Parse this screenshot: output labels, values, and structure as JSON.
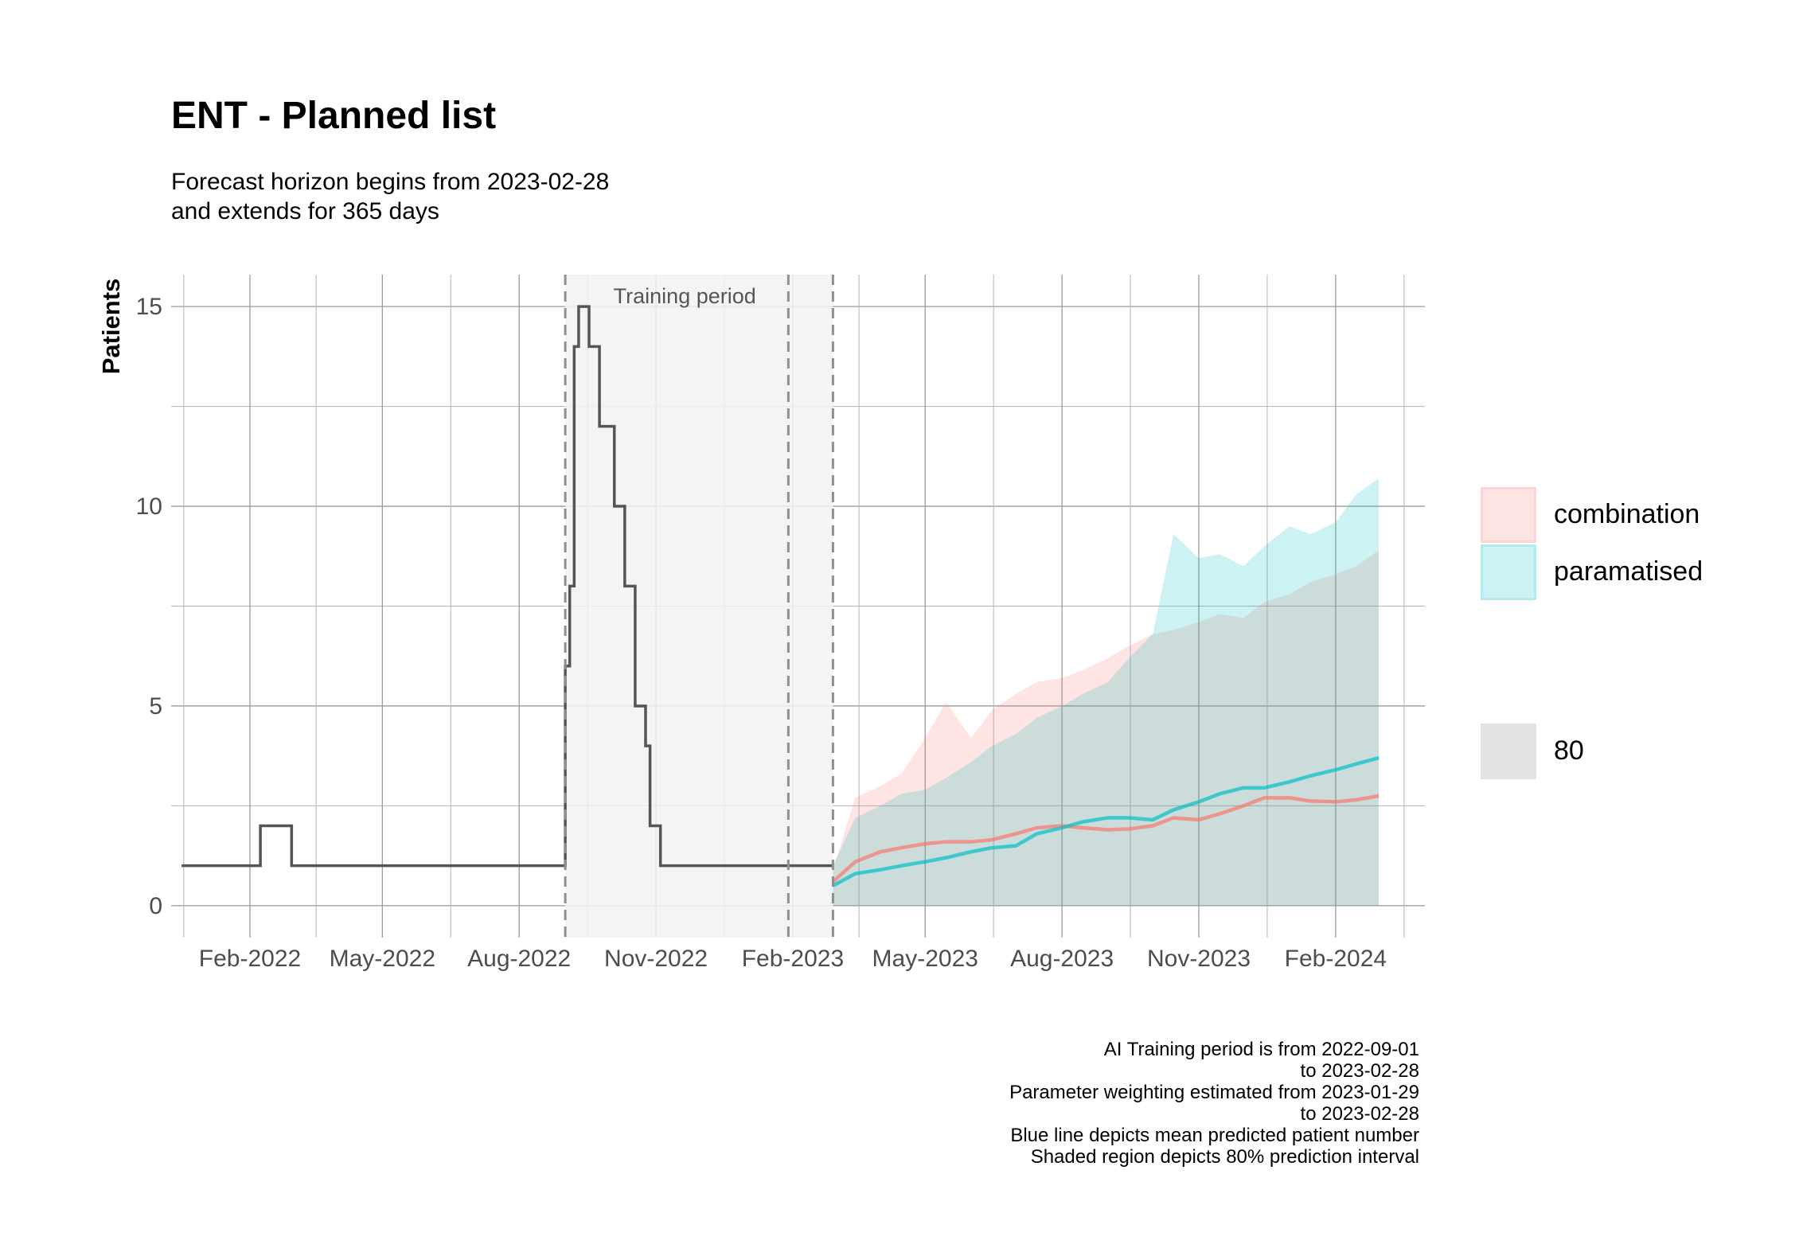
{
  "title": "ENT - Planned list",
  "subtitle_lines": [
    "Forecast horizon begins from 2023-02-28",
    "and extends for 365 days"
  ],
  "caption_lines": [
    "AI Training period is from 2022-09-01",
    "to 2023-02-28",
    "Parameter weighting estimated from 2023-01-29",
    "to 2023-02-28",
    "Blue line depicts mean predicted patient number",
    "Shaded region depicts 80% prediction interval"
  ],
  "legend": {
    "items": [
      {
        "label": "combination",
        "color": "#F8766D"
      },
      {
        "label": "paramatised",
        "color": "#00BFC4"
      }
    ],
    "interval_label": "80"
  },
  "colors": {
    "observed": "#555555",
    "combination": "#F8766D",
    "paramatised": "#00BFC4",
    "training_shade": "#F2F2F2"
  },
  "chart_data": {
    "type": "line",
    "ylabel": "Patients",
    "xlabel": "",
    "xlim": [
      "2021-12-10",
      "2024-04-01"
    ],
    "ylim": [
      -0.8,
      15.8
    ],
    "y_ticks": [
      0,
      5,
      10,
      15
    ],
    "x_ticks": [
      {
        "date": "2022-02-01",
        "label": "Feb-2022"
      },
      {
        "date": "2022-05-01",
        "label": "May-2022"
      },
      {
        "date": "2022-08-01",
        "label": "Aug-2022"
      },
      {
        "date": "2022-11-01",
        "label": "Nov-2022"
      },
      {
        "date": "2023-02-01",
        "label": "Feb-2023"
      },
      {
        "date": "2023-05-01",
        "label": "May-2023"
      },
      {
        "date": "2023-08-01",
        "label": "Aug-2023"
      },
      {
        "date": "2023-11-01",
        "label": "Nov-2023"
      },
      {
        "date": "2024-02-01",
        "label": "Feb-2024"
      }
    ],
    "grid": true,
    "legend_position": "right",
    "annotations": {
      "training_period_label": "Training period",
      "training_period": [
        "2022-09-01",
        "2023-02-28"
      ],
      "parameter_window_start": "2023-01-29"
    },
    "observed": {
      "x": [
        "2021-12-17",
        "2022-02-08",
        "2022-02-08",
        "2022-03-01",
        "2022-03-01",
        "2022-09-01",
        "2022-09-01",
        "2022-09-04",
        "2022-09-04",
        "2022-09-07",
        "2022-09-07",
        "2022-09-10",
        "2022-09-10",
        "2022-09-17",
        "2022-09-17",
        "2022-09-24",
        "2022-09-24",
        "2022-10-04",
        "2022-10-04",
        "2022-10-11",
        "2022-10-11",
        "2022-10-18",
        "2022-10-18",
        "2022-10-25",
        "2022-10-25",
        "2022-10-28",
        "2022-10-28",
        "2022-11-04",
        "2022-11-04",
        "2023-02-28"
      ],
      "y": [
        1,
        1,
        2,
        2,
        1,
        1,
        6,
        6,
        8,
        8,
        14,
        14,
        15,
        15,
        14,
        14,
        12,
        12,
        10,
        10,
        8,
        8,
        5,
        5,
        4,
        4,
        2,
        2,
        1,
        1
      ]
    },
    "series": [
      {
        "name": "combination",
        "x": [
          "2023-02-28",
          "2023-03-15",
          "2023-04-01",
          "2023-04-15",
          "2023-05-01",
          "2023-05-15",
          "2023-06-01",
          "2023-06-15",
          "2023-07-01",
          "2023-07-15",
          "2023-08-01",
          "2023-08-15",
          "2023-09-01",
          "2023-09-15",
          "2023-10-01",
          "2023-10-15",
          "2023-11-01",
          "2023-11-15",
          "2023-12-01",
          "2023-12-15",
          "2024-01-01",
          "2024-01-15",
          "2024-02-01",
          "2024-02-15",
          "2024-03-01"
        ],
        "mean": [
          0.6,
          1.1,
          1.35,
          1.45,
          1.55,
          1.6,
          1.6,
          1.65,
          1.8,
          1.95,
          2.0,
          1.95,
          1.9,
          1.92,
          2.0,
          2.2,
          2.15,
          2.3,
          2.5,
          2.7,
          2.7,
          2.62,
          2.6,
          2.65,
          2.75
        ],
        "lower": [
          0.0,
          0.0,
          0.0,
          0.0,
          0.0,
          0.0,
          0.0,
          0.0,
          0.0,
          0.0,
          0.0,
          0.0,
          0.0,
          0.0,
          0.0,
          0.0,
          0.0,
          0.0,
          0.0,
          0.0,
          0.0,
          0.0,
          0.0,
          0.0,
          0.0
        ],
        "upper": [
          0.9,
          2.7,
          3.0,
          3.3,
          4.2,
          5.1,
          4.2,
          4.9,
          5.3,
          5.6,
          5.7,
          5.9,
          6.2,
          6.5,
          6.8,
          6.9,
          7.1,
          7.3,
          7.2,
          7.6,
          7.8,
          8.1,
          8.3,
          8.5,
          8.9
        ]
      },
      {
        "name": "paramatised",
        "x": [
          "2023-02-28",
          "2023-03-15",
          "2023-04-01",
          "2023-04-15",
          "2023-05-01",
          "2023-05-15",
          "2023-06-01",
          "2023-06-15",
          "2023-07-01",
          "2023-07-15",
          "2023-08-01",
          "2023-08-15",
          "2023-09-01",
          "2023-09-15",
          "2023-10-01",
          "2023-10-15",
          "2023-11-01",
          "2023-11-15",
          "2023-12-01",
          "2023-12-15",
          "2024-01-01",
          "2024-01-15",
          "2024-02-01",
          "2024-02-15",
          "2024-03-01"
        ],
        "mean": [
          0.5,
          0.8,
          0.9,
          1.0,
          1.1,
          1.2,
          1.35,
          1.45,
          1.5,
          1.8,
          1.95,
          2.1,
          2.2,
          2.2,
          2.15,
          2.4,
          2.6,
          2.8,
          2.95,
          2.95,
          3.1,
          3.25,
          3.4,
          3.55,
          3.7
        ],
        "lower": [
          0.0,
          0.0,
          0.0,
          0.0,
          0.0,
          0.0,
          0.0,
          0.0,
          0.0,
          0.0,
          0.0,
          0.0,
          0.0,
          0.0,
          0.0,
          0.0,
          0.0,
          0.0,
          0.0,
          0.0,
          0.0,
          0.0,
          0.0,
          0.0,
          0.0
        ],
        "upper": [
          1.0,
          2.2,
          2.5,
          2.8,
          2.9,
          3.2,
          3.6,
          4.0,
          4.3,
          4.7,
          5.0,
          5.3,
          5.6,
          6.2,
          6.8,
          9.3,
          8.7,
          8.8,
          8.5,
          9.0,
          9.5,
          9.3,
          9.6,
          10.3,
          10.7
        ]
      }
    ]
  }
}
